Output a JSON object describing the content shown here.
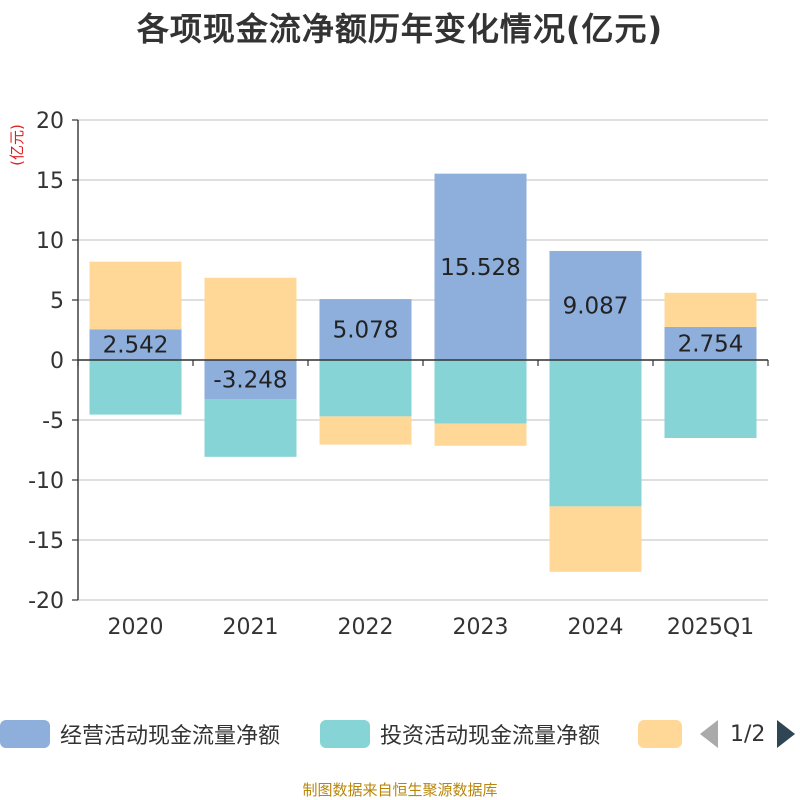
{
  "title": "各项现金流净额历年变化情况(亿元)",
  "source": "制图数据来自恒生聚源数据库",
  "legend_pager": "1/2",
  "chart_data": {
    "type": "bar",
    "stacked": true,
    "categories": [
      "2020",
      "2021",
      "2022",
      "2023",
      "2024",
      "2025Q1"
    ],
    "ylabel": "(亿元)",
    "ylim": [
      -20,
      20
    ],
    "yticks": [
      20,
      15,
      10,
      5,
      0,
      -5,
      -10,
      -15,
      -20
    ],
    "grid": true,
    "legend_position": "bottom",
    "series": [
      {
        "name": "经营活动现金流量净额",
        "color": "#8eaedb",
        "values": [
          2.542,
          -3.248,
          5.078,
          15.528,
          9.087,
          2.754
        ],
        "data_labels": [
          "2.542",
          "-3.248",
          "5.078",
          "15.528",
          "9.087",
          "2.754"
        ]
      },
      {
        "name": "投资活动现金流量净额",
        "color": "#86d4d6",
        "values": [
          -4.55,
          -4.82,
          -4.7,
          -5.3,
          -12.2,
          -6.5
        ]
      },
      {
        "name": "",
        "color": "#ffd898",
        "values": [
          5.65,
          6.85,
          -2.35,
          -1.85,
          -5.45,
          2.85
        ]
      }
    ]
  }
}
